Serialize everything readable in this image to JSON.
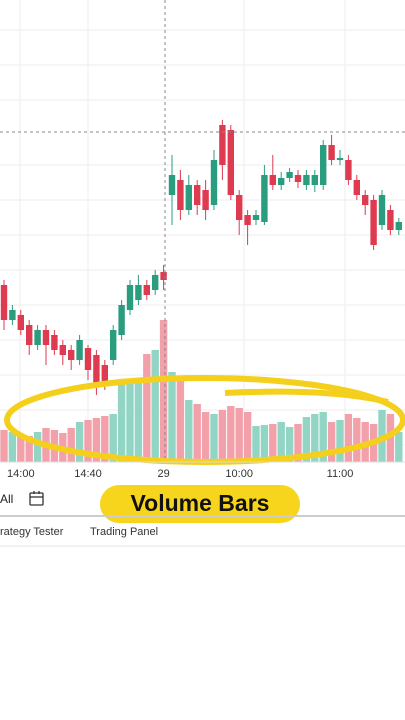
{
  "chart_data": {
    "type": "candlestick",
    "categories": [
      null,
      null,
      "14:00",
      null,
      null,
      null,
      null,
      null,
      null,
      null,
      "14:40",
      null,
      null,
      null,
      null,
      null,
      null,
      null,
      null,
      "29",
      null,
      null,
      null,
      null,
      null,
      null,
      null,
      null,
      "10:00",
      null,
      null,
      null,
      null,
      null,
      null,
      null,
      null,
      null,
      null,
      null,
      "11:00",
      null,
      null,
      null,
      null,
      null,
      null,
      null
    ],
    "open": [
      195,
      160,
      165,
      155,
      135,
      150,
      145,
      135,
      130,
      120,
      132,
      125,
      115,
      120,
      145,
      170,
      180,
      195,
      190,
      208,
      285,
      300,
      270,
      295,
      290,
      275,
      355,
      350,
      285,
      265,
      260,
      258,
      305,
      295,
      302,
      305,
      295,
      295,
      295,
      335,
      320,
      320,
      300,
      285,
      280,
      255,
      270,
      250
    ],
    "high": [
      200,
      175,
      170,
      160,
      155,
      155,
      150,
      140,
      135,
      145,
      135,
      130,
      120,
      155,
      180,
      200,
      205,
      200,
      210,
      215,
      325,
      310,
      305,
      300,
      300,
      330,
      360,
      355,
      290,
      270,
      270,
      315,
      325,
      308,
      312,
      310,
      310,
      310,
      340,
      345,
      330,
      325,
      305,
      290,
      285,
      290,
      275,
      262
    ],
    "low": [
      150,
      155,
      145,
      125,
      130,
      115,
      125,
      115,
      110,
      115,
      100,
      85,
      90,
      115,
      140,
      165,
      175,
      180,
      185,
      190,
      255,
      260,
      265,
      265,
      260,
      270,
      300,
      280,
      245,
      235,
      255,
      255,
      290,
      290,
      298,
      292,
      290,
      288,
      290,
      315,
      315,
      295,
      280,
      265,
      230,
      250,
      245,
      245
    ],
    "close": [
      160,
      170,
      150,
      135,
      150,
      135,
      130,
      125,
      120,
      140,
      110,
      95,
      95,
      150,
      175,
      195,
      195,
      185,
      205,
      200,
      305,
      270,
      295,
      275,
      270,
      320,
      315,
      285,
      260,
      255,
      265,
      305,
      295,
      302,
      308,
      298,
      305,
      305,
      335,
      320,
      322,
      300,
      285,
      275,
      235,
      285,
      250,
      258
    ],
    "volume": [
      32,
      30,
      28,
      26,
      30,
      34,
      32,
      29,
      34,
      40,
      42,
      44,
      46,
      48,
      80,
      82,
      84,
      108,
      112,
      142,
      90,
      85,
      62,
      58,
      50,
      48,
      52,
      56,
      54,
      50,
      36,
      37,
      38,
      40,
      35,
      38,
      45,
      48,
      50,
      40,
      42,
      48,
      44,
      40,
      38,
      52,
      48,
      30
    ],
    "ylim": [
      0,
      480
    ],
    "volume_lim": [
      0,
      150
    ],
    "up_color": "#2a9d7f",
    "down_color": "#de3a50",
    "up_volume_color": "#92d5c5",
    "down_volume_color": "#f2a1aa"
  },
  "ui": {
    "range_button": "All",
    "badge": "Volume Bars",
    "tabs": [
      "rategy Tester",
      "Trading Panel"
    ]
  }
}
